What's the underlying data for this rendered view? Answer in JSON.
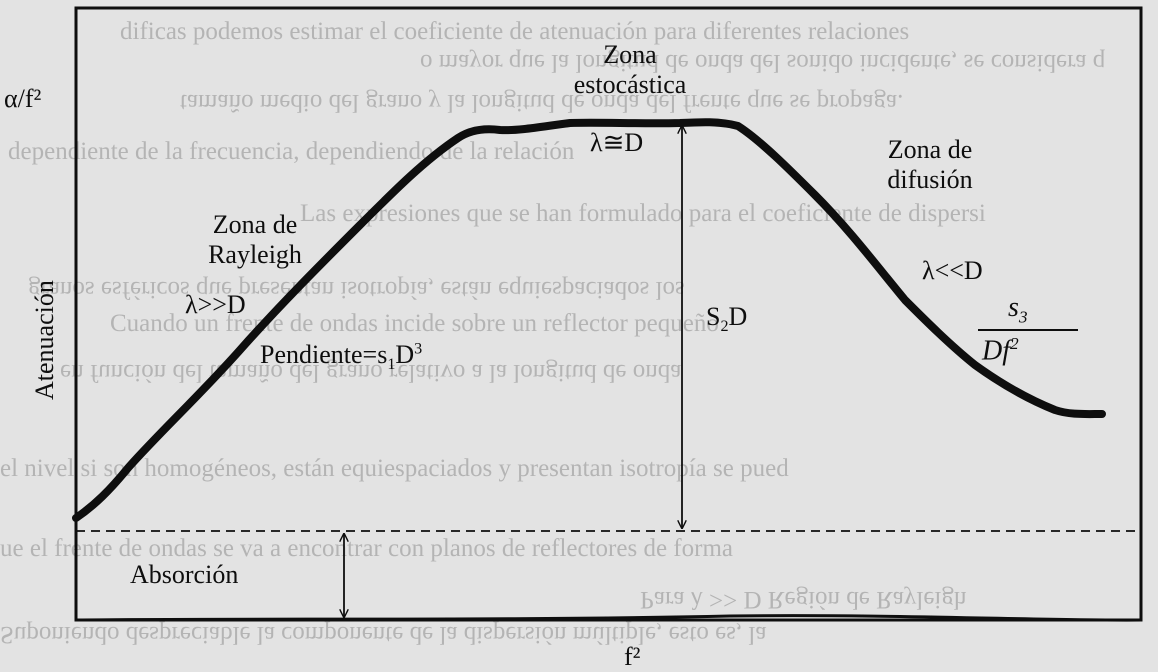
{
  "background_text": [
    "dificas podemos estimar el coeficiente de atenuación para diferentes relaciones",
    "o mayor que la longitud de onda del sonido incidente, se considera q",
    "tamaño medio del grano y la longitud de onda del frente que se propaga.",
    "dependiente de la frecuencia, dependiendo de la relación",
    "Las expresiones que se han formulado para el coeficiente de dispersi",
    "granos esféricos que presentan isotropía, están equiespaciados los",
    "Cuando un frente de ondas incide sobre un reflector pequeño",
    "en función del tamaño del grano relativo a la longitud de onda",
    "el nivel si son homogéneos, están equiespaciados y presentan isotropía se pued",
    "ue el frente de ondas se va a encontrar con planos de reflectores de forma",
    "Para λ >> D  Región de Rayleigh",
    "Suponiendo despreciable la componente de la dispersión múltiple, esto es, la"
  ],
  "labels": {
    "y_axis_top": "α/f²",
    "y_axis_side": "Atenuación",
    "x_axis": "f²",
    "zona_rayleigh_1": "Zona de",
    "zona_rayleigh_2": "Rayleigh",
    "rayleigh_cond": "λ>>D",
    "pendiente_prefix": "Pendiente=s",
    "pendiente_sub": "1",
    "pendiente_mid": "D",
    "pendiente_sup": "3",
    "zona_estocastica_1": "Zona",
    "zona_estocastica_2": "estocástica",
    "estocastica_cond": "λ≅D",
    "s2d_s": "S",
    "s2d_sub": "2",
    "s2d_d": "D",
    "zona_difusion_1": "Zona de",
    "zona_difusion_2": "difusión",
    "difusion_cond": "λ<<D",
    "frac_num_s": "s",
    "frac_num_sub": "3",
    "frac_den": "Df",
    "frac_den_sup": "2",
    "absorcion": "Absorción"
  },
  "colors": {
    "page": "#e3e3e3",
    "ink": "#0e0e0e",
    "bleed": "#8e8e8e"
  }
}
